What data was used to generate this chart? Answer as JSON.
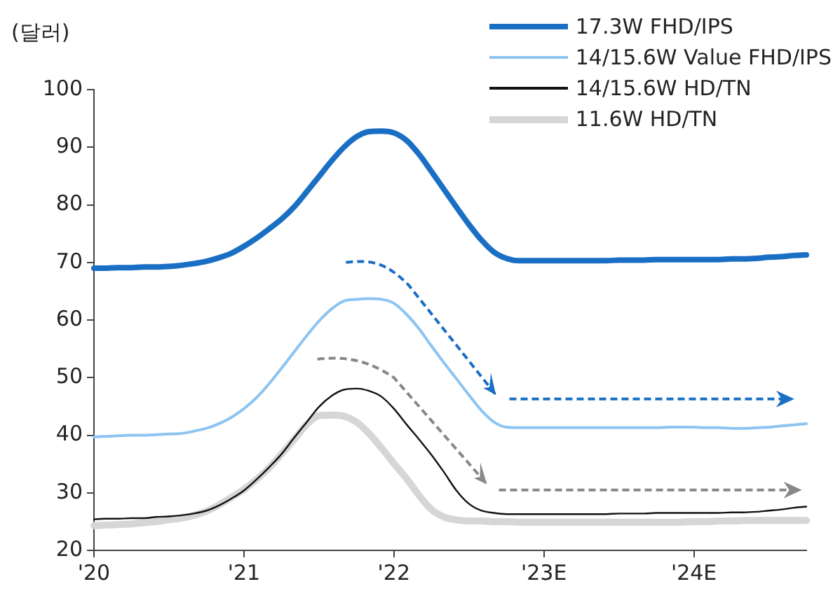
{
  "chart_data": {
    "type": "line",
    "ylabel": "(달러)",
    "categories": [
      "'20",
      null,
      null,
      null,
      null,
      null,
      null,
      null,
      null,
      null,
      null,
      null,
      "'21",
      null,
      null,
      null,
      null,
      null,
      null,
      null,
      null,
      null,
      null,
      null,
      "'22",
      null,
      null,
      null,
      null,
      null,
      null,
      null,
      null,
      null,
      null,
      null,
      "'23E",
      null,
      null,
      null,
      null,
      null,
      null,
      null,
      null,
      null,
      null,
      null,
      "'24E",
      null,
      null,
      null,
      null,
      null,
      null,
      null,
      null,
      null
    ],
    "ylim": [
      20,
      100
    ],
    "yticks": [
      20,
      30,
      40,
      50,
      60,
      70,
      80,
      90,
      100
    ],
    "grid": false,
    "legend": "top right",
    "marker": "none",
    "line_style": "solid",
    "series": [
      {
        "name": "17.3W FHD/IPS",
        "color": "#1a6fc4",
        "values": [
          69,
          69,
          69.1,
          69.1,
          69.2,
          69.2,
          69.3,
          69.5,
          69.8,
          70.2,
          70.8,
          71.6,
          72.8,
          74.2,
          75.8,
          77.5,
          79.6,
          82.2,
          84.9,
          87.6,
          90,
          91.8,
          92.7,
          92.8,
          92.5,
          91.2,
          88.8,
          85.8,
          82.7,
          79.6,
          76.6,
          73.9,
          71.8,
          70.7,
          70.3,
          70.3,
          70.3,
          70.3,
          70.3,
          70.3,
          70.3,
          70.3,
          70.4,
          70.4,
          70.4,
          70.5,
          70.5,
          70.5,
          70.5,
          70.5,
          70.5,
          70.6,
          70.6,
          70.7,
          70.9,
          71,
          71.2,
          71.3
        ]
      },
      {
        "name": "14/15.6W Value FHD/IPS",
        "color": "#8cc4f2",
        "values": [
          39.7,
          39.8,
          39.9,
          40,
          40,
          40.1,
          40.2,
          40.3,
          40.7,
          41.2,
          42,
          43.1,
          44.6,
          46.5,
          48.9,
          51.6,
          54.4,
          57.2,
          59.8,
          61.9,
          63.3,
          63.6,
          63.7,
          63.6,
          62.9,
          61,
          58.5,
          55.5,
          52.6,
          49.8,
          47,
          44.3,
          42.3,
          41.4,
          41.3,
          41.3,
          41.3,
          41.3,
          41.3,
          41.3,
          41.3,
          41.3,
          41.3,
          41.3,
          41.3,
          41.3,
          41.4,
          41.4,
          41.4,
          41.3,
          41.3,
          41.2,
          41.2,
          41.3,
          41.4,
          41.6,
          41.8,
          42
        ]
      },
      {
        "name": "14/15.6W HD/TN",
        "color": "#111111",
        "values": [
          25.4,
          25.5,
          25.5,
          25.6,
          25.6,
          25.8,
          25.9,
          26.1,
          26.4,
          26.9,
          27.8,
          29,
          30.4,
          32.3,
          34.4,
          36.7,
          39.5,
          42.2,
          44.9,
          46.8,
          47.9,
          48.1,
          47.7,
          46.7,
          44.6,
          41.9,
          39.3,
          36.6,
          33.6,
          30.4,
          28.1,
          26.9,
          26.5,
          26.3,
          26.3,
          26.3,
          26.3,
          26.3,
          26.3,
          26.3,
          26.3,
          26.3,
          26.4,
          26.4,
          26.4,
          26.5,
          26.5,
          26.5,
          26.5,
          26.5,
          26.5,
          26.6,
          26.6,
          26.7,
          26.9,
          27.1,
          27.4,
          27.6
        ]
      },
      {
        "name": "11.6W HD/TN",
        "color": "#d6d6d6",
        "values": [
          24.3,
          24.4,
          24.5,
          24.6,
          24.8,
          25,
          25.3,
          25.6,
          26.1,
          26.8,
          27.9,
          29.2,
          30.6,
          32.3,
          34.3,
          36.7,
          39.2,
          41.8,
          43.4,
          43.5,
          43.3,
          42.3,
          40.3,
          37.8,
          35.1,
          32.5,
          29.6,
          27.1,
          25.8,
          25.3,
          25.1,
          25.1,
          25,
          25,
          24.9,
          24.9,
          24.9,
          24.9,
          24.9,
          24.9,
          24.9,
          24.9,
          24.9,
          24.9,
          24.9,
          24.9,
          24.9,
          24.9,
          25,
          25,
          25.1,
          25.1,
          25.2,
          25.2,
          25.2,
          25.2,
          25.2,
          25.2
        ]
      }
    ]
  }
}
